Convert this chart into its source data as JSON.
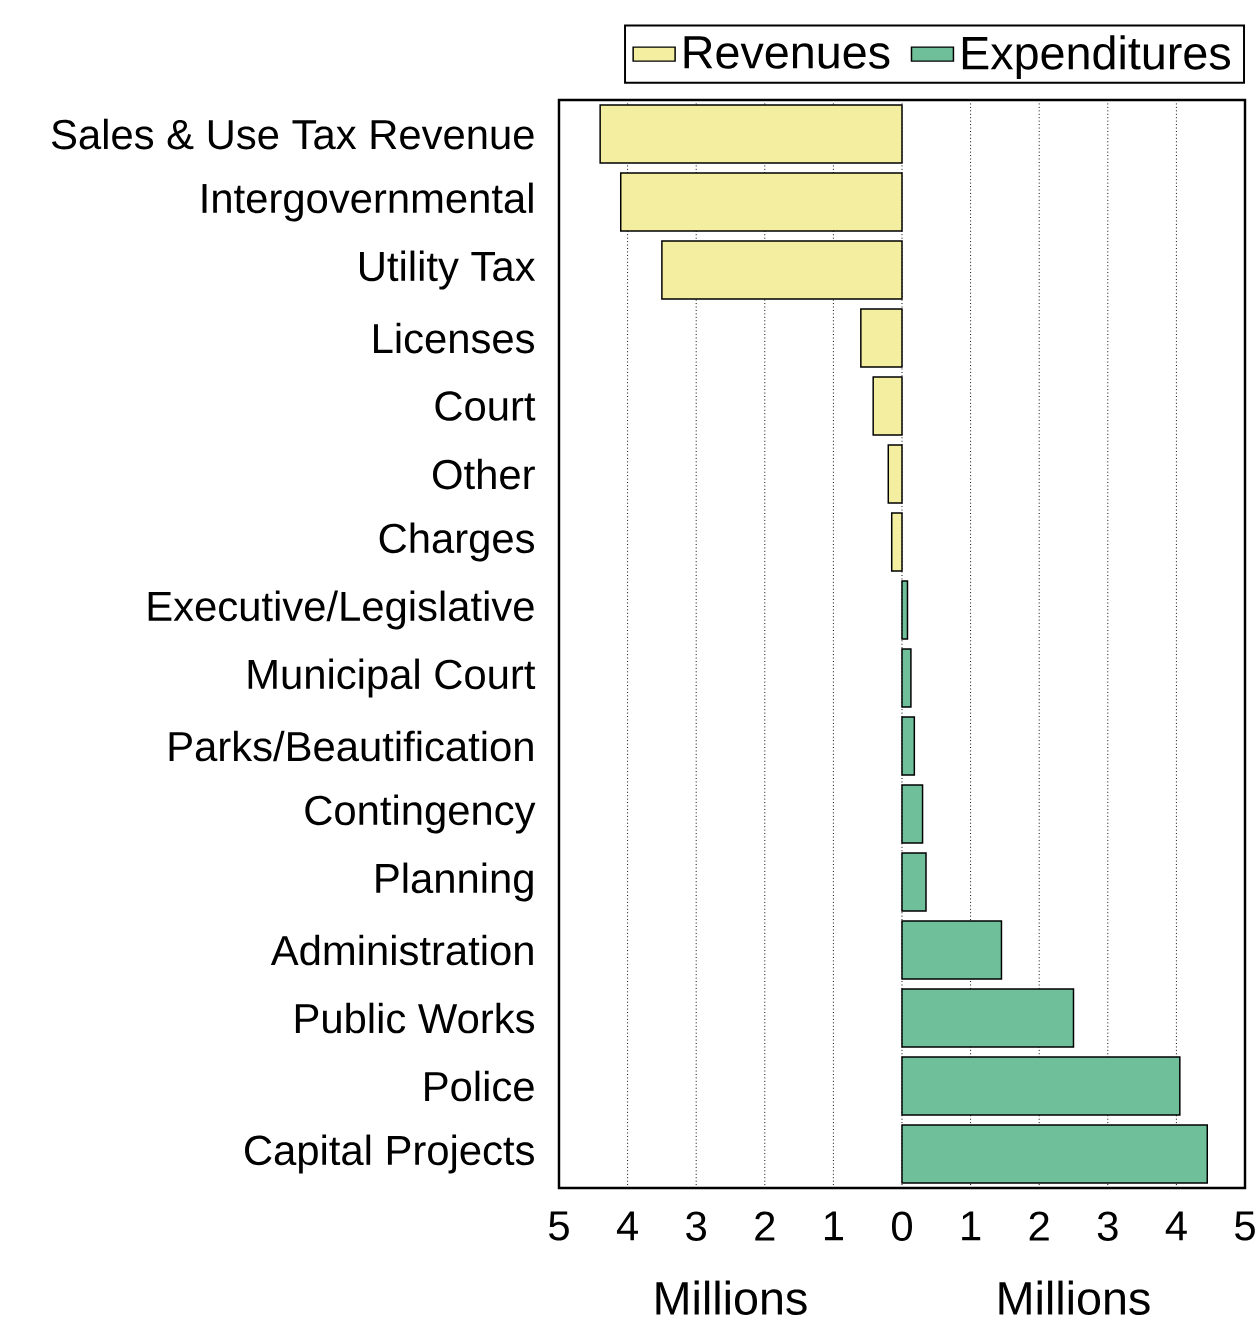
{
  "chart_data": {
    "type": "bar",
    "orientation": "horizontal",
    "xlabel": "Millions",
    "annotations": [
      "Millions"
    ],
    "categories": [
      "Sales & Use Tax Revenue",
      "Intergovernmental",
      "Utility Tax",
      "Licenses",
      "Court",
      "Other",
      "Charges",
      "Executive/Legislative",
      "Municipal Court",
      "Parks/Beautification",
      "Contingency",
      "Planning",
      "Administration",
      "Public Works",
      "Police",
      "Capital Projects"
    ],
    "series": [
      {
        "name": "Revenues",
        "color": "#f3eea0",
        "values": [
          -4.4,
          -4.1,
          -3.5,
          -0.6,
          -0.42,
          -0.2,
          -0.15,
          null,
          null,
          null,
          null,
          null,
          null,
          null,
          null,
          null
        ]
      },
      {
        "name": "Expenditures",
        "color": "#6fbf9a",
        "values": [
          null,
          null,
          null,
          null,
          null,
          null,
          null,
          0.08,
          0.13,
          0.18,
          0.3,
          0.35,
          1.45,
          2.5,
          4.05,
          4.45
        ]
      }
    ],
    "xlim": [
      -5,
      5
    ],
    "xticks": [
      {
        "value": -5,
        "label": "5"
      },
      {
        "value": -4,
        "label": "4"
      },
      {
        "value": -3,
        "label": "3"
      },
      {
        "value": -2,
        "label": "2"
      },
      {
        "value": -1,
        "label": "1"
      },
      0,
      1,
      2,
      3,
      4,
      5
    ],
    "grid": "x",
    "legend": "top"
  }
}
